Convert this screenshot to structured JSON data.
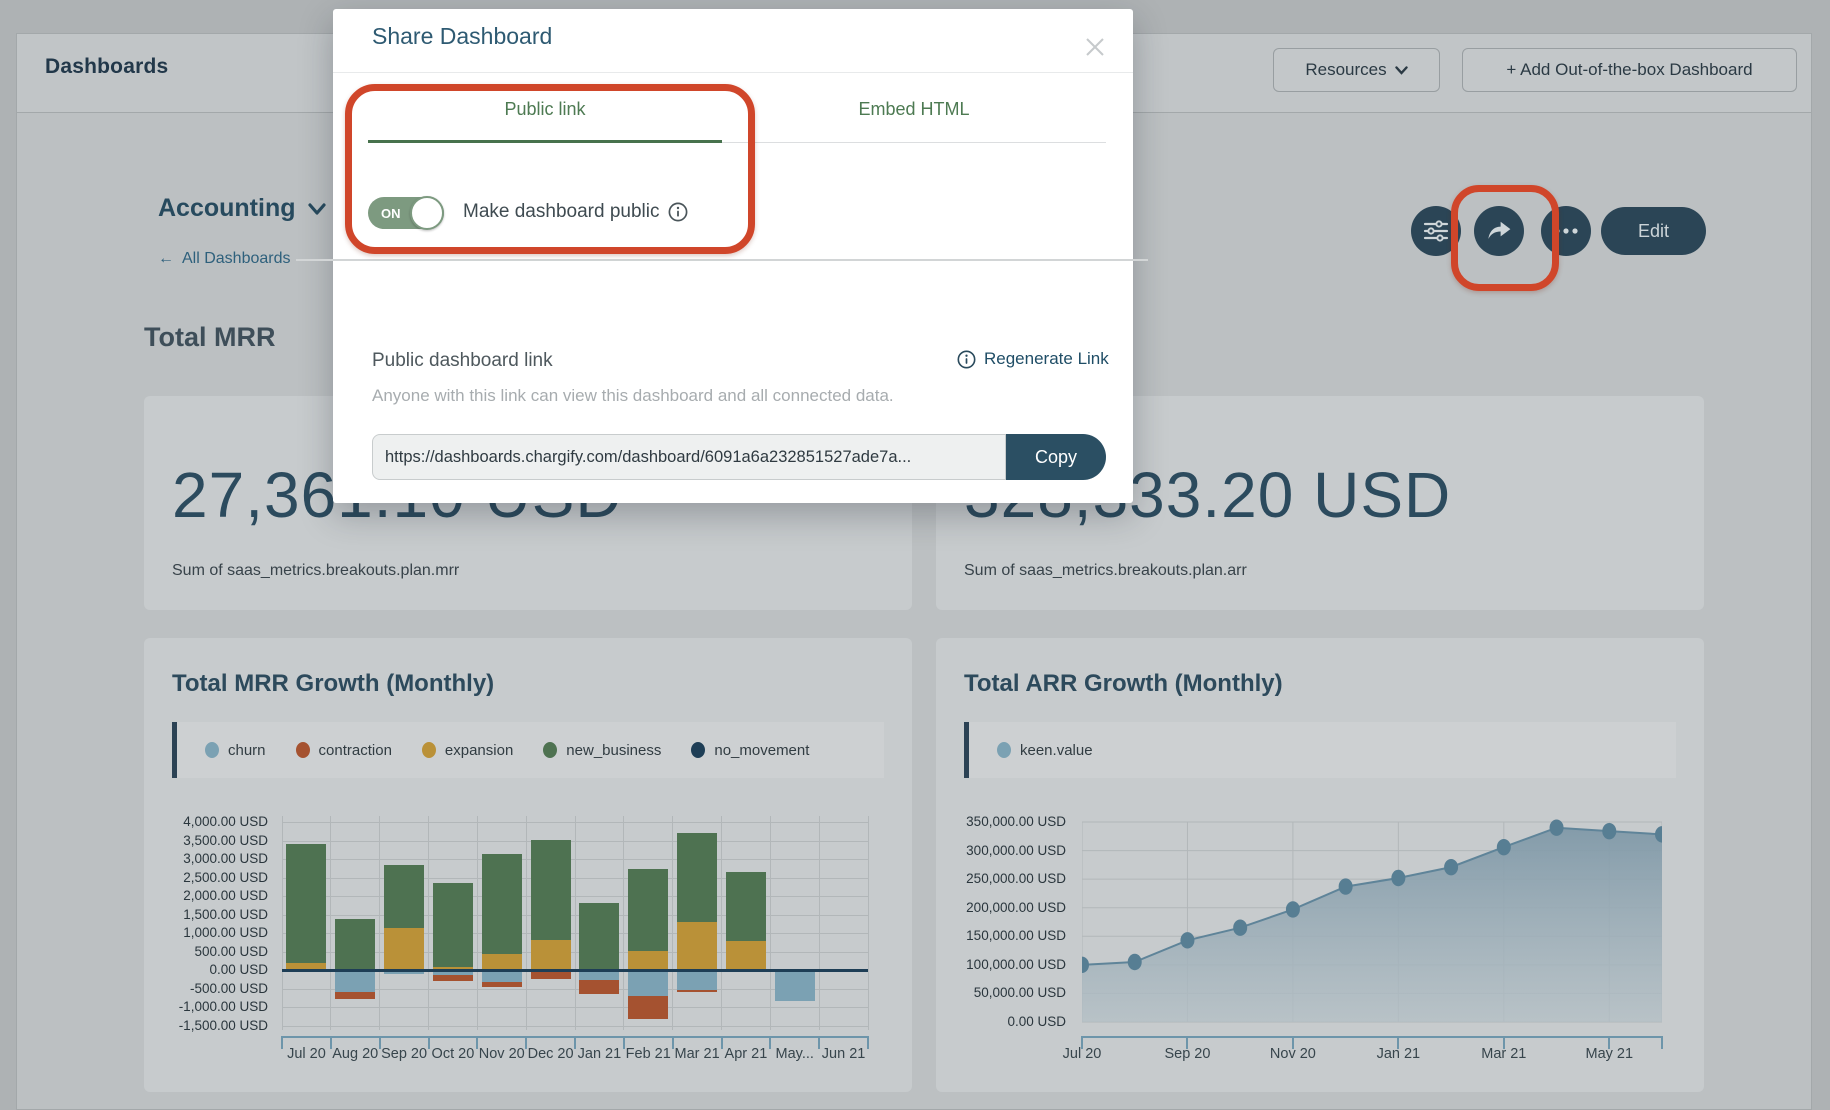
{
  "header": {
    "title": "Dashboards",
    "resources_label": "Resources",
    "add_dashboard_label": "+ Add Out-of-the-box Dashboard"
  },
  "breadcrumb": {
    "dashboard_name": "Accounting",
    "back_label": "All Dashboards",
    "back_arrow": "←"
  },
  "toolbar": {
    "edit_label": "Edit"
  },
  "metrics_section": {
    "title": "Total MRR"
  },
  "cards": {
    "mrr": {
      "value": "27,361.10 USD",
      "caption": "Sum of saas_metrics.breakouts.plan.mrr"
    },
    "arr": {
      "value": "328,333.20 USD",
      "caption": "Sum of saas_metrics.breakouts.plan.arr"
    }
  },
  "modal": {
    "title": "Share Dashboard",
    "tabs": [
      {
        "label": "Public link",
        "active": true
      },
      {
        "label": "Embed HTML",
        "active": false
      }
    ],
    "toggle": {
      "state_label": "ON",
      "label": "Make dashboard public"
    },
    "link_section": {
      "label": "Public dashboard link",
      "regenerate_label": "Regenerate Link",
      "description": "Anyone with this link can view this dashboard and all connected data.",
      "url": "https://dashboards.chargify.com/dashboard/6091a6a232851527ade7a...",
      "copy_label": "Copy"
    }
  },
  "colors": {
    "accent_dark_teal": "#2b4556",
    "annotation_red": "#d0462a",
    "toggle_green": "#7d9a80",
    "tab_green": "#4d7a52",
    "axis_blue": "#6d95aa"
  },
  "chart_data": [
    {
      "type": "bar",
      "stacked": true,
      "title": "Total MRR Growth (Monthly)",
      "categories": [
        "Jul 20",
        "Aug 20",
        "Sep 20",
        "Oct 20",
        "Nov 20",
        "Dec 20",
        "Jan 21",
        "Feb 21",
        "Mar 21",
        "Apr 21",
        "May...",
        "Jun 21"
      ],
      "series": [
        {
          "name": "churn",
          "color": "#7ba1b3",
          "values": [
            0,
            -580,
            -100,
            -120,
            -310,
            0,
            -270,
            -700,
            -520,
            0,
            -830,
            0
          ]
        },
        {
          "name": "contraction",
          "color": "#a55230",
          "values": [
            0,
            -180,
            0,
            -170,
            -150,
            -220,
            -360,
            -610,
            -60,
            0,
            0,
            0
          ]
        },
        {
          "name": "expansion",
          "color": "#ba9138",
          "values": [
            200,
            0,
            1150,
            80,
            450,
            820,
            40,
            510,
            1310,
            780,
            0,
            0
          ]
        },
        {
          "name": "new_business",
          "color": "#4e7251",
          "values": [
            3200,
            1380,
            1680,
            2270,
            2680,
            2700,
            1780,
            2220,
            2390,
            1880,
            0,
            0
          ]
        },
        {
          "name": "no_movement",
          "color": "#1e3e56",
          "values": [
            0,
            0,
            0,
            0,
            0,
            0,
            0,
            0,
            0,
            0,
            0,
            0
          ]
        }
      ],
      "ylim": [
        -1500,
        4000
      ],
      "ytick_step": 500,
      "tick_suffix": " USD",
      "grid": true,
      "legend_position": "top",
      "zero_line_color": "#1e3e56"
    },
    {
      "type": "area",
      "title": "Total ARR Growth (Monthly)",
      "series": [
        {
          "name": "keen.value",
          "color": "#7ba1b3",
          "values": [
            100000,
            105000,
            143000,
            165000,
            197000,
            237000,
            252000,
            271000,
            306000,
            340000,
            334000,
            328333
          ]
        }
      ],
      "x": [
        "Jul 20",
        "Aug 20",
        "Sep 20",
        "Oct 20",
        "Nov 20",
        "Dec 20",
        "Jan 21",
        "Feb 21",
        "Mar 21",
        "Apr 21",
        "May 21",
        "Jun 21"
      ],
      "xtick_indices": [
        0,
        2,
        4,
        6,
        8,
        10
      ],
      "ylim": [
        0,
        350000
      ],
      "ytick_step": 50000,
      "tick_suffix": " USD",
      "grid": true,
      "line_color": "#5f8499",
      "marker_color": "#577e93",
      "fill_top": "#8099a8",
      "fill_bottom": "#b3bfc5",
      "legend_position": "top"
    }
  ]
}
